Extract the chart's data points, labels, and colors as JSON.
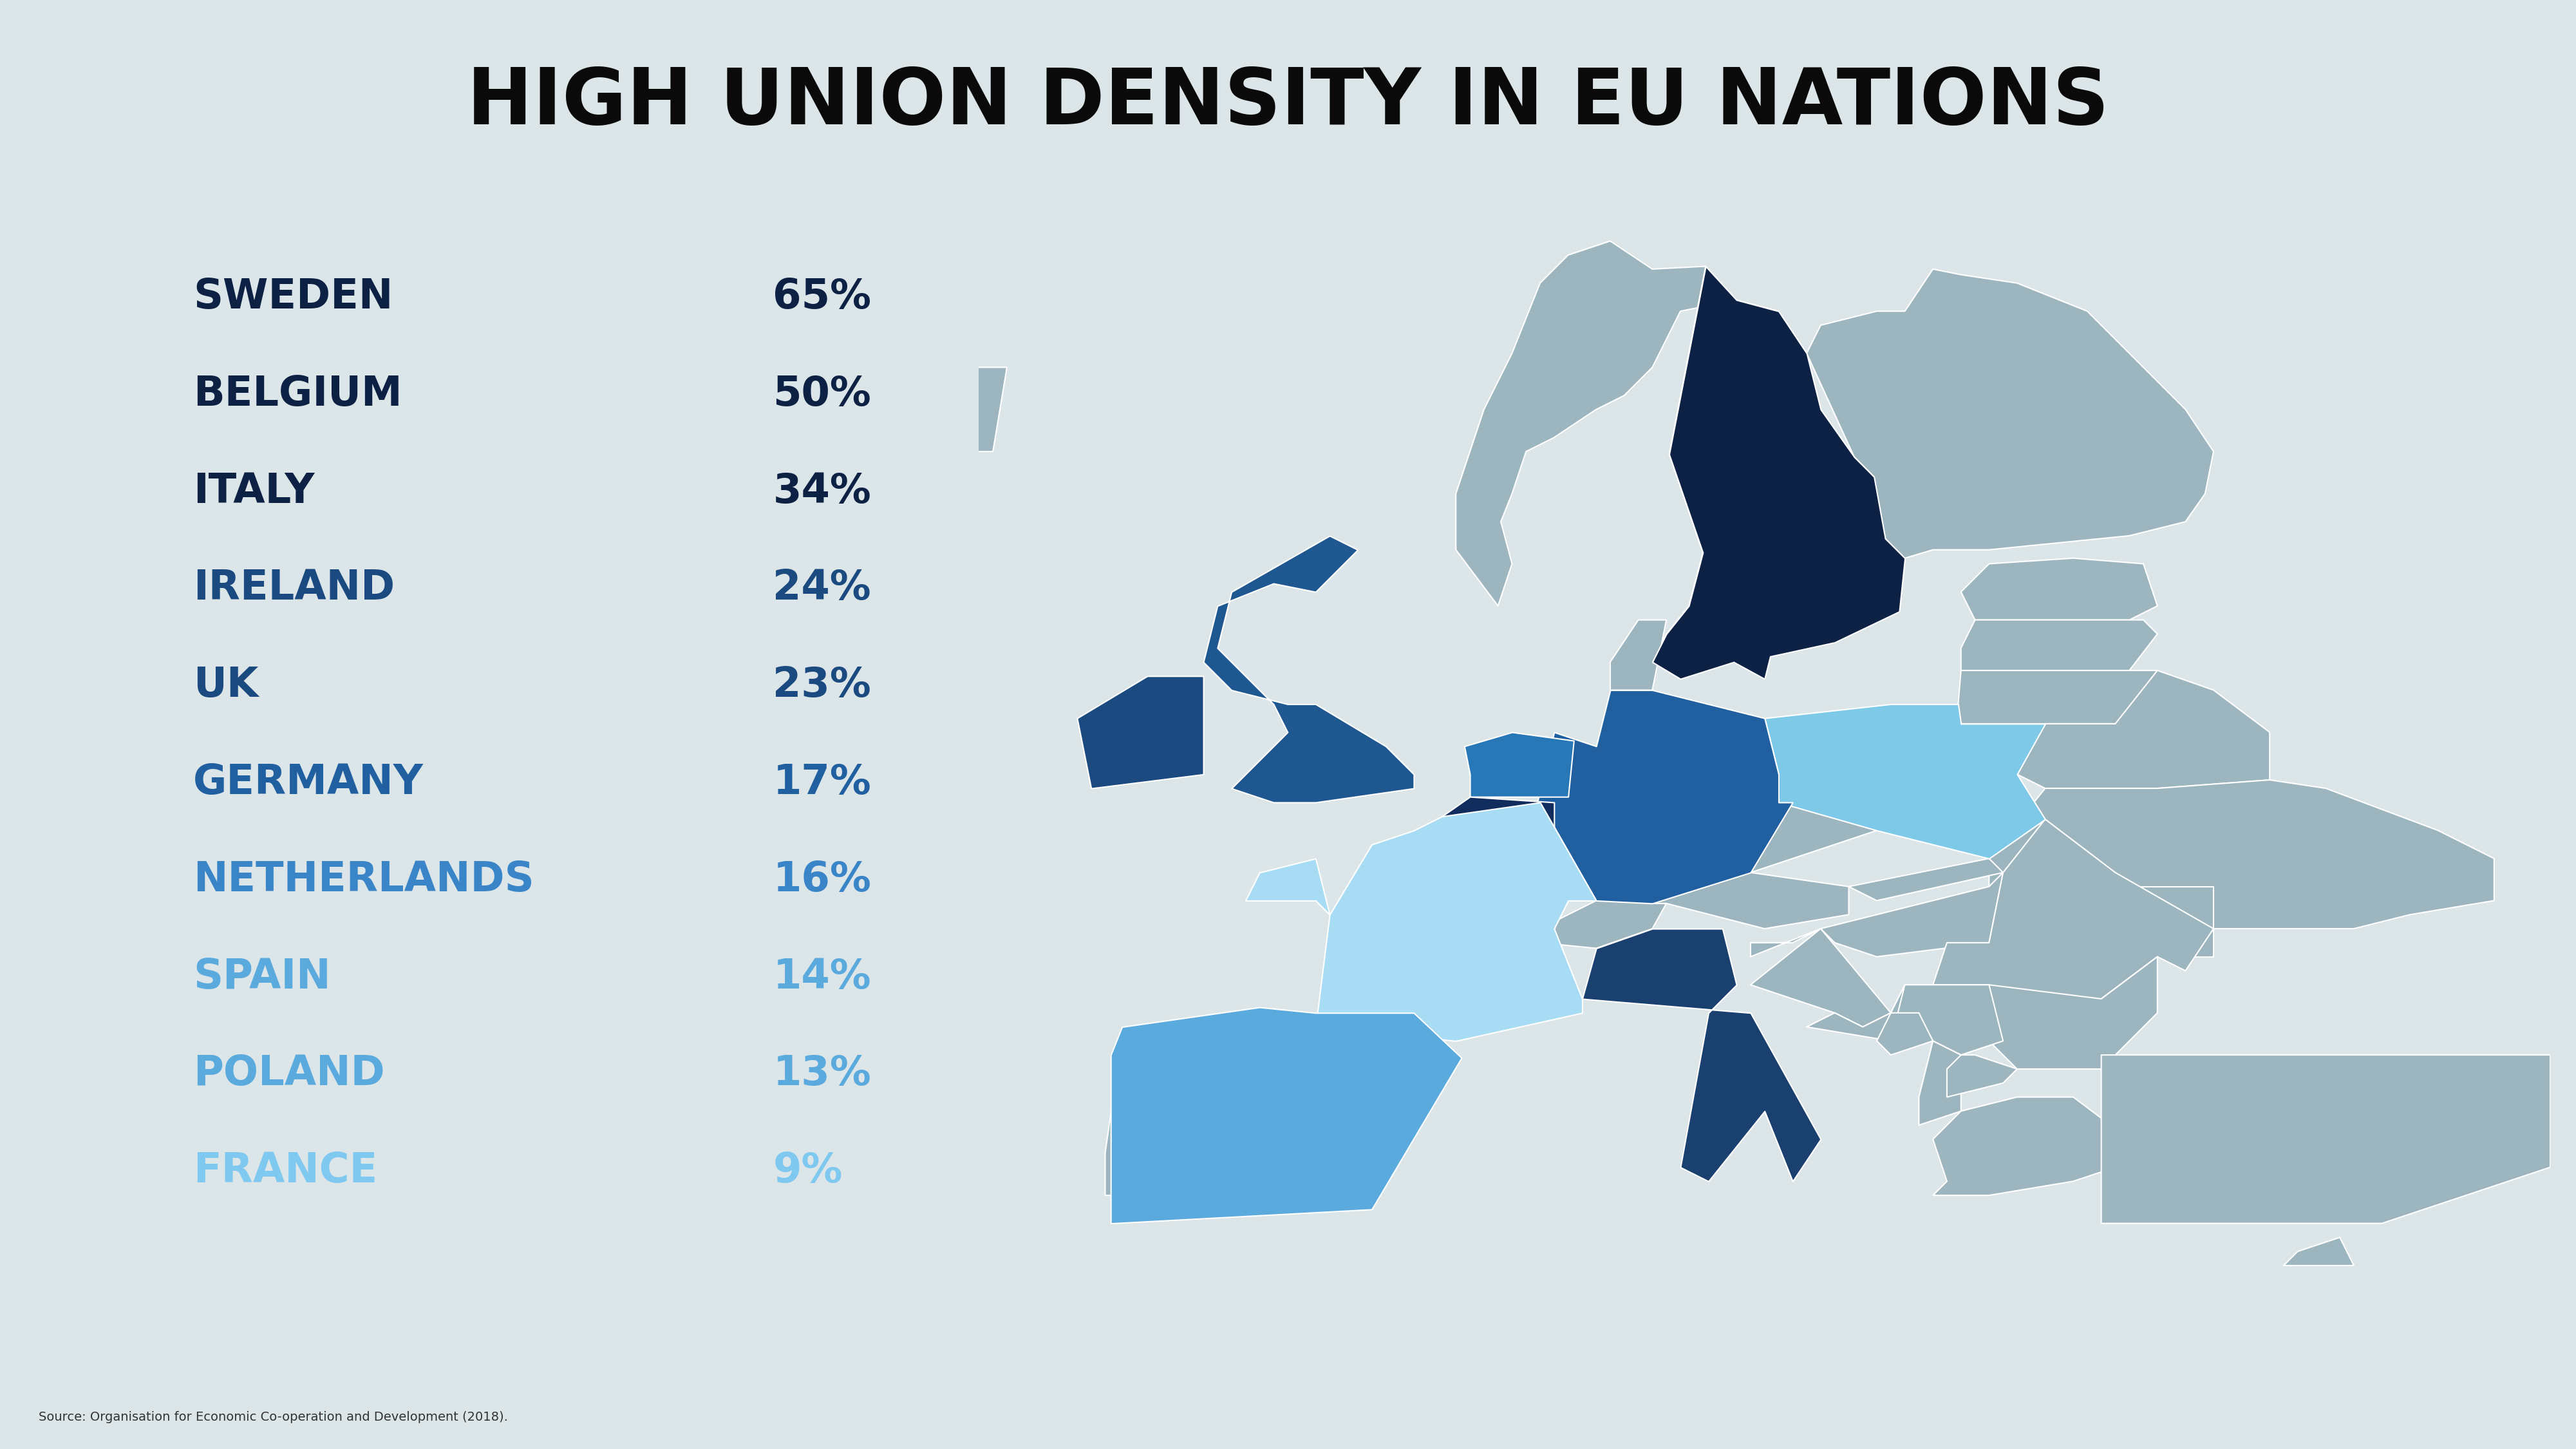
{
  "title": "HIGH UNION DENSITY IN EU NATIONS",
  "background_color": "#dce6e9",
  "title_color": "#0a0a0a",
  "source_text": "Source: Organisation for Economic Co-operation and Development (2018).",
  "countries": [
    {
      "name": "SWEDEN",
      "value": "65%",
      "name_color": "#0d2145",
      "value_color": "#0d2145"
    },
    {
      "name": "BELGIUM",
      "value": "50%",
      "name_color": "#0d2145",
      "value_color": "#0d2145"
    },
    {
      "name": "ITALY",
      "value": "34%",
      "name_color": "#0d2145",
      "value_color": "#0d2145"
    },
    {
      "name": "IRELAND",
      "value": "24%",
      "name_color": "#1a4a80",
      "value_color": "#1a4a80"
    },
    {
      "name": "UK",
      "value": "23%",
      "name_color": "#1a4a80",
      "value_color": "#1a4a80"
    },
    {
      "name": "GERMANY",
      "value": "17%",
      "name_color": "#2060a0",
      "value_color": "#2060a0"
    },
    {
      "name": "NETHERLANDS",
      "value": "16%",
      "name_color": "#3a85c8",
      "value_color": "#3a85c8"
    },
    {
      "name": "SPAIN",
      "value": "14%",
      "name_color": "#5baade",
      "value_color": "#5baade"
    },
    {
      "name": "POLAND",
      "value": "13%",
      "name_color": "#5baade",
      "value_color": "#5baade"
    },
    {
      "name": "FRANCE",
      "value": "9%",
      "name_color": "#7fc8f0",
      "value_color": "#7fc8f0"
    }
  ],
  "country_colors": {
    "Sweden": "#0d2145",
    "Belgium": "#112d5e",
    "Italy": "#1a4070",
    "Ireland": "#1a4a80",
    "United Kingdom": "#1f5890",
    "Germany": "#2060a0",
    "Netherlands": "#2878b8",
    "Spain": "#5baade",
    "Poland": "#7ec8e8",
    "France": "#a8dcf5"
  },
  "other_eu_color": "#9db5be",
  "sea_color": "#dce6e9"
}
